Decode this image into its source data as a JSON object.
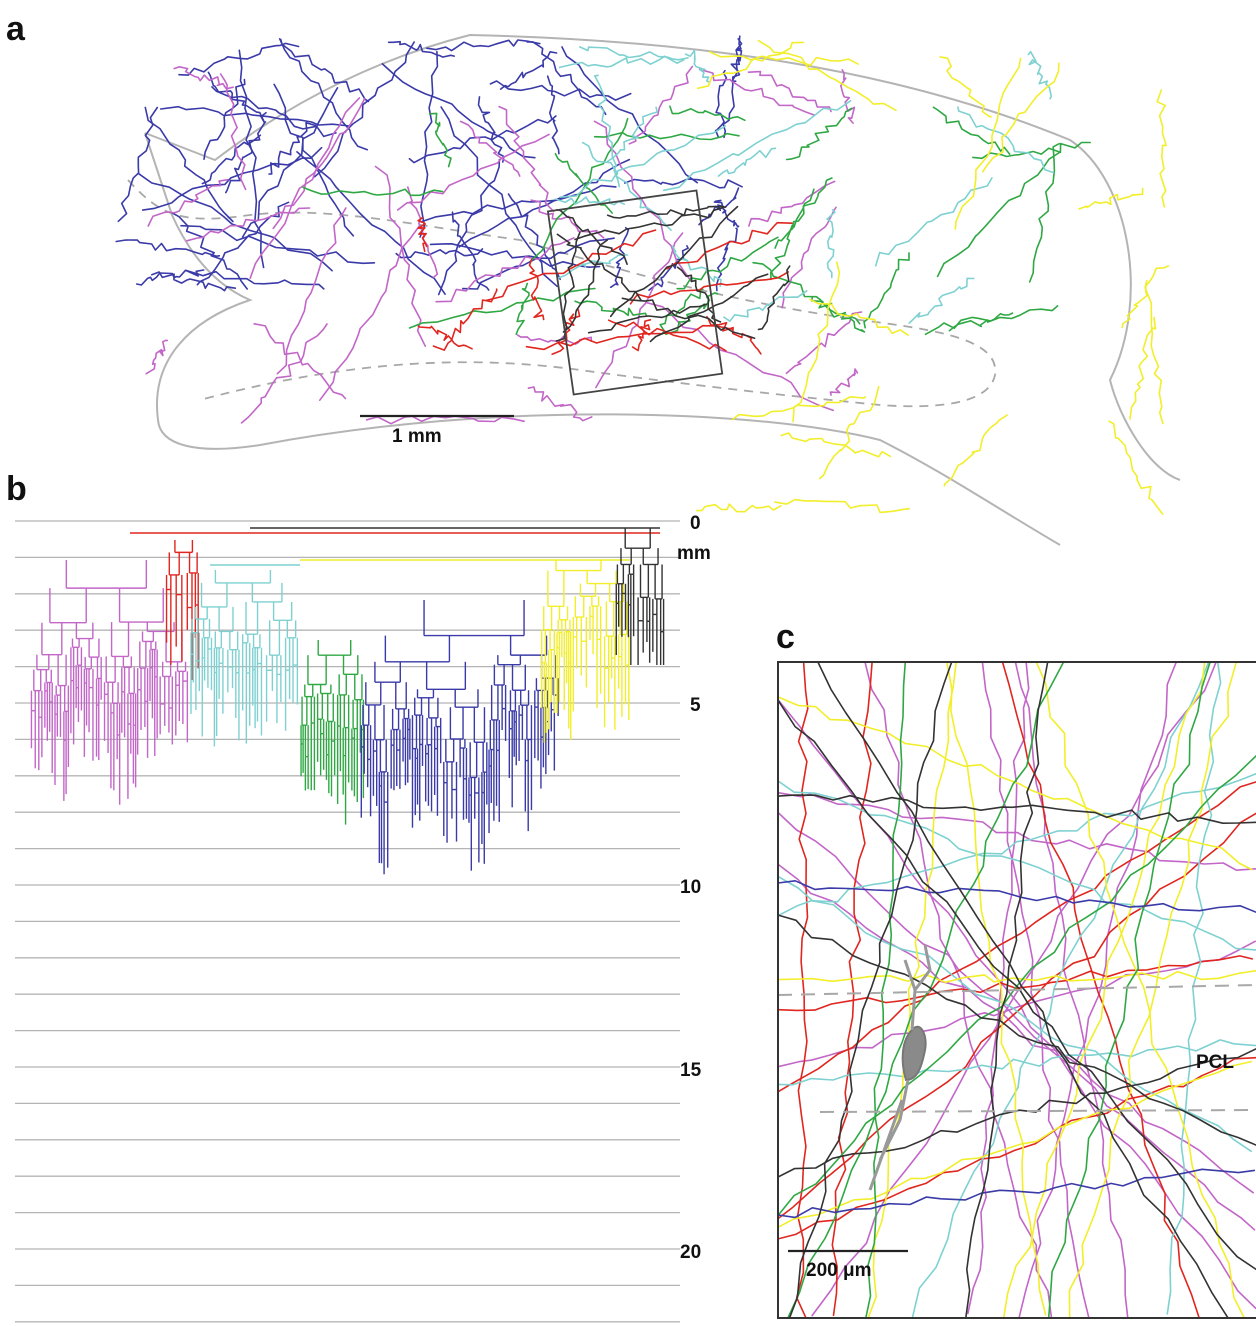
{
  "panels": {
    "a": {
      "label": "a",
      "scale_bar": "1 mm"
    },
    "b": {
      "label": "b",
      "depth_ticks": [
        "0",
        "5",
        "10",
        "15",
        "20"
      ],
      "unit": "mm"
    },
    "c": {
      "label": "c",
      "scale_bar": "200 μm",
      "layer_label": "PCL"
    }
  },
  "colors": {
    "magenta": "#c266c8",
    "red": "#e0261f",
    "cyan": "#7fd1d1",
    "yellow": "#f2ee2a",
    "green": "#2fa844",
    "blue": "#3a3aa8",
    "black": "#333333",
    "gray": "#b4b4b4"
  },
  "tree_order": [
    "magenta",
    "red",
    "cyan",
    "yellow",
    "green",
    "blue",
    "black"
  ]
}
